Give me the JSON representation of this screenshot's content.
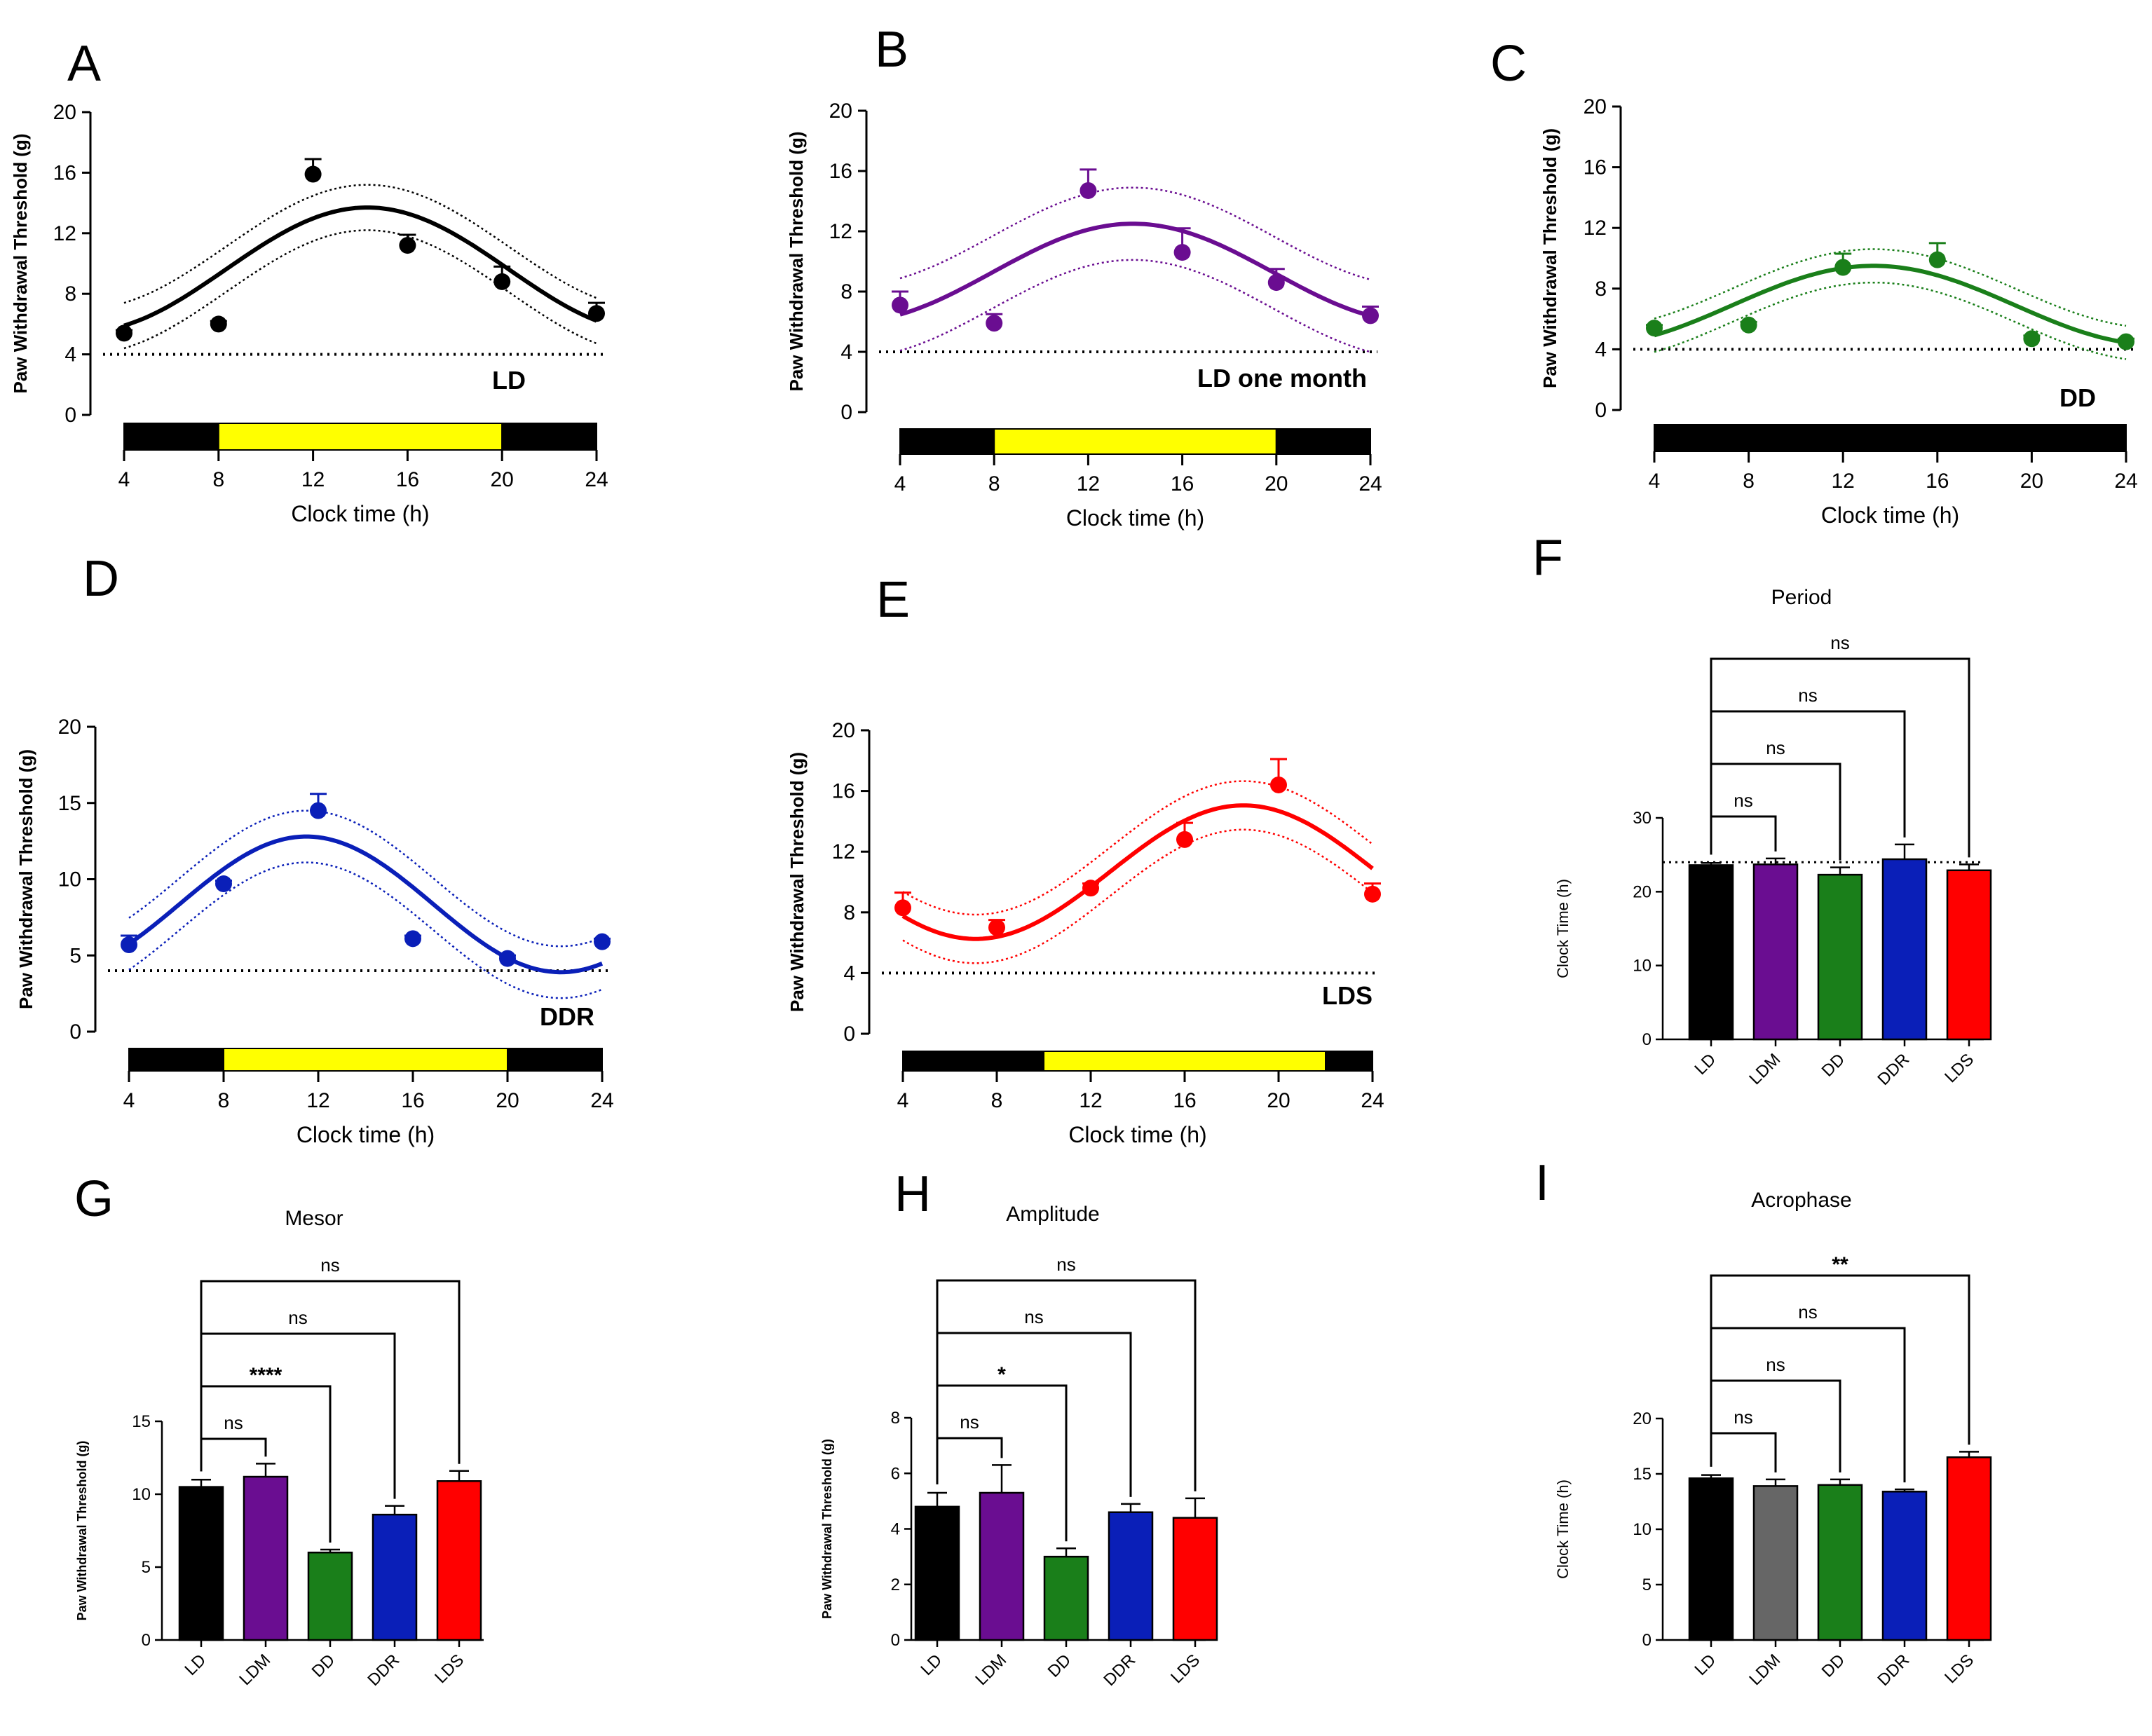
{
  "figure": {
    "rhythm_x_label": "Clock time (h)",
    "rhythm_y_label": "Paw Withdrawal Threshold (g)"
  },
  "chart_data": [
    {
      "id": "A",
      "type": "line",
      "panel_label": "A",
      "condition_label": "LD",
      "color": "#000000",
      "xlabel": "Clock time (h)",
      "ylabel": "Paw Withdrawal Threshold (g)",
      "xlim": [
        4,
        24
      ],
      "ylim": [
        0,
        20
      ],
      "xticks": [
        4,
        8,
        12,
        16,
        20,
        24
      ],
      "yticks": [
        0,
        4,
        8,
        12,
        16,
        20
      ],
      "baseline": 4,
      "points": {
        "x": [
          4,
          8,
          12,
          16,
          20,
          24
        ],
        "y": [
          5.4,
          6.0,
          15.9,
          11.2,
          8.8,
          6.7
        ],
        "err": [
          0.2,
          0.2,
          1.0,
          0.7,
          1.0,
          0.7
        ]
      },
      "cosinor": {
        "mesor": 9.6,
        "amplitude": 4.1,
        "acrophase": 14.3,
        "period": 24,
        "band": 1.5
      },
      "light_bar": [
        {
          "from": 4,
          "to": 8,
          "fill": "#000000"
        },
        {
          "from": 8,
          "to": 20,
          "fill": "#ffff00"
        },
        {
          "from": 20,
          "to": 24,
          "fill": "#000000"
        }
      ]
    },
    {
      "id": "B",
      "type": "line",
      "panel_label": "B",
      "condition_label": "LD one month",
      "color": "#6a0d91",
      "xlabel": "Clock time (h)",
      "ylabel": "Paw Withdrawal Threshold (g)",
      "xlim": [
        4,
        24
      ],
      "ylim": [
        0,
        20
      ],
      "xticks": [
        4,
        8,
        12,
        16,
        20,
        24
      ],
      "yticks": [
        0,
        4,
        8,
        12,
        16,
        20
      ],
      "baseline": 4,
      "points": {
        "x": [
          4,
          8,
          12,
          16,
          20,
          24
        ],
        "y": [
          7.1,
          5.9,
          14.7,
          10.6,
          8.6,
          6.4
        ],
        "err": [
          0.9,
          0.6,
          1.4,
          1.6,
          0.9,
          0.6
        ]
      },
      "cosinor": {
        "mesor": 9.25,
        "amplitude": 3.25,
        "acrophase": 13.9,
        "period": 24,
        "band": 2.4
      },
      "light_bar": [
        {
          "from": 4,
          "to": 8,
          "fill": "#000000"
        },
        {
          "from": 8,
          "to": 20,
          "fill": "#ffff00"
        },
        {
          "from": 20,
          "to": 24,
          "fill": "#000000"
        }
      ]
    },
    {
      "id": "C",
      "type": "line",
      "panel_label": "C",
      "condition_label": "DD",
      "color": "#1a7f1a",
      "xlabel": "Clock time (h)",
      "ylabel": "Paw Withdrawal Threshold (g)",
      "xlim": [
        4,
        24
      ],
      "ylim": [
        0,
        20
      ],
      "xticks": [
        4,
        8,
        12,
        16,
        20,
        24
      ],
      "yticks": [
        0,
        4,
        8,
        12,
        16,
        20
      ],
      "baseline": 4,
      "points": {
        "x": [
          4,
          8,
          12,
          16,
          20,
          24
        ],
        "y": [
          5.4,
          5.6,
          9.4,
          9.9,
          4.7,
          4.5
        ],
        "err": [
          0.2,
          0.2,
          0.9,
          1.1,
          0.2,
          0.2
        ]
      },
      "cosinor": {
        "mesor": 6.9,
        "amplitude": 2.6,
        "acrophase": 13.3,
        "period": 24,
        "band": 1.1
      },
      "light_bar": [
        {
          "from": 4,
          "to": 24,
          "fill": "#000000"
        }
      ]
    },
    {
      "id": "D",
      "type": "line",
      "panel_label": "D",
      "condition_label": "DDR",
      "color": "#0a1fb8",
      "xlabel": "Clock time (h)",
      "ylabel": "Paw Withdrawal Threshold (g)",
      "xlim": [
        4,
        24
      ],
      "ylim": [
        0,
        20
      ],
      "xticks": [
        4,
        8,
        12,
        16,
        20,
        24
      ],
      "yticks": [
        0,
        5,
        10,
        15,
        20
      ],
      "baseline": 4,
      "points": {
        "x": [
          4,
          8,
          12,
          16,
          20,
          24
        ],
        "y": [
          5.7,
          9.7,
          14.5,
          6.1,
          4.8,
          5.9
        ],
        "err": [
          0.6,
          0.2,
          1.1,
          0.2,
          0.2,
          0.2
        ]
      },
      "cosinor": {
        "mesor": 8.35,
        "amplitude": 4.45,
        "acrophase": 11.5,
        "period": 21.5,
        "band": 1.7
      },
      "light_bar": [
        {
          "from": 4,
          "to": 8,
          "fill": "#000000"
        },
        {
          "from": 8,
          "to": 20,
          "fill": "#ffff00"
        },
        {
          "from": 20,
          "to": 24,
          "fill": "#000000"
        }
      ]
    },
    {
      "id": "E",
      "type": "line",
      "panel_label": "E",
      "condition_label": "LDS",
      "color": "#ff0000",
      "xlabel": "Clock time (h)",
      "ylabel": "Paw Withdrawal Threshold (g)",
      "xlim": [
        4,
        24
      ],
      "ylim": [
        0,
        20
      ],
      "xticks": [
        4,
        8,
        12,
        16,
        20,
        24
      ],
      "yticks": [
        0,
        4,
        8,
        12,
        16,
        20
      ],
      "baseline": 4,
      "points": {
        "x": [
          4,
          8,
          12,
          16,
          20,
          24
        ],
        "y": [
          8.3,
          7.0,
          9.6,
          12.8,
          16.4,
          9.2
        ],
        "err": [
          1.0,
          0.5,
          0.3,
          1.1,
          1.7,
          0.7
        ]
      },
      "cosinor": {
        "mesor": 10.65,
        "amplitude": 4.4,
        "acrophase": 18.5,
        "period": 22.8,
        "band": 1.6
      },
      "light_bar": [
        {
          "from": 4,
          "to": 10,
          "fill": "#000000"
        },
        {
          "from": 10,
          "to": 22,
          "fill": "#ffff00"
        },
        {
          "from": 22,
          "to": 24,
          "fill": "#000000"
        }
      ]
    },
    {
      "id": "F",
      "type": "bar",
      "panel_label": "F",
      "title": "Period",
      "ylabel": "Clock Time (h)",
      "ylim": [
        0,
        30
      ],
      "yticks": [
        0,
        10,
        20,
        30
      ],
      "reference_line": 24,
      "categories": [
        "LD",
        "LDM",
        "DD",
        "DDR",
        "LDS"
      ],
      "values": [
        23.6,
        23.7,
        22.3,
        24.4,
        22.9
      ],
      "errors": [
        0.3,
        0.8,
        1.0,
        2.0,
        0.8
      ],
      "colors": [
        "#000000",
        "#6a0d91",
        "#1a7f1a",
        "#0a1fb8",
        "#ff0000"
      ],
      "comparisons": [
        {
          "to": "LDM",
          "label": "ns"
        },
        {
          "to": "DD",
          "label": "ns"
        },
        {
          "to": "DDR",
          "label": "ns"
        },
        {
          "to": "LDS",
          "label": "ns"
        }
      ]
    },
    {
      "id": "G",
      "type": "bar",
      "panel_label": "G",
      "title": "Mesor",
      "ylabel": "Paw Withdrawal Threshold (g)",
      "ylim": [
        0,
        15
      ],
      "yticks": [
        0,
        5,
        10,
        15
      ],
      "categories": [
        "LD",
        "LDM",
        "DD",
        "DDR",
        "LDS"
      ],
      "values": [
        10.5,
        11.2,
        6.0,
        8.6,
        10.9
      ],
      "errors": [
        0.5,
        0.9,
        0.2,
        0.6,
        0.7
      ],
      "colors": [
        "#000000",
        "#6a0d91",
        "#1a7f1a",
        "#0a1fb8",
        "#ff0000"
      ],
      "comparisons": [
        {
          "to": "LDM",
          "label": "ns"
        },
        {
          "to": "DD",
          "label": "****"
        },
        {
          "to": "DDR",
          "label": "ns"
        },
        {
          "to": "LDS",
          "label": "ns"
        }
      ]
    },
    {
      "id": "H",
      "type": "bar",
      "panel_label": "H",
      "title": "Amplitude",
      "ylabel": "Paw Withdrawal Threshold (g)",
      "ylim": [
        0,
        8
      ],
      "yticks": [
        0,
        2,
        4,
        6,
        8
      ],
      "categories": [
        "LD",
        "LDM",
        "DD",
        "DDR",
        "LDS"
      ],
      "values": [
        4.8,
        5.3,
        3.0,
        4.6,
        4.4
      ],
      "errors": [
        0.5,
        1.0,
        0.3,
        0.3,
        0.7
      ],
      "colors": [
        "#000000",
        "#6a0d91",
        "#1a7f1a",
        "#0a1fb8",
        "#ff0000"
      ],
      "comparisons": [
        {
          "to": "LDM",
          "label": "ns"
        },
        {
          "to": "DD",
          "label": "*"
        },
        {
          "to": "DDR",
          "label": "ns"
        },
        {
          "to": "LDS",
          "label": "ns"
        }
      ]
    },
    {
      "id": "I",
      "type": "bar",
      "panel_label": "I",
      "title": "Acrophase",
      "ylabel": "Clock Time (h)",
      "ylim": [
        0,
        20
      ],
      "yticks": [
        0,
        5,
        10,
        15,
        20
      ],
      "categories": [
        "LD",
        "LDM",
        "DD",
        "DDR",
        "LDS"
      ],
      "values": [
        14.6,
        13.9,
        14.0,
        13.4,
        16.5
      ],
      "errors": [
        0.3,
        0.6,
        0.5,
        0.2,
        0.5
      ],
      "colors": [
        "#000000",
        "#666666",
        "#1a7f1a",
        "#0a1fb8",
        "#ff0000"
      ],
      "comparisons": [
        {
          "to": "LDM",
          "label": "ns"
        },
        {
          "to": "DD",
          "label": "ns"
        },
        {
          "to": "DDR",
          "label": "ns"
        },
        {
          "to": "LDS",
          "label": "**"
        }
      ]
    }
  ]
}
